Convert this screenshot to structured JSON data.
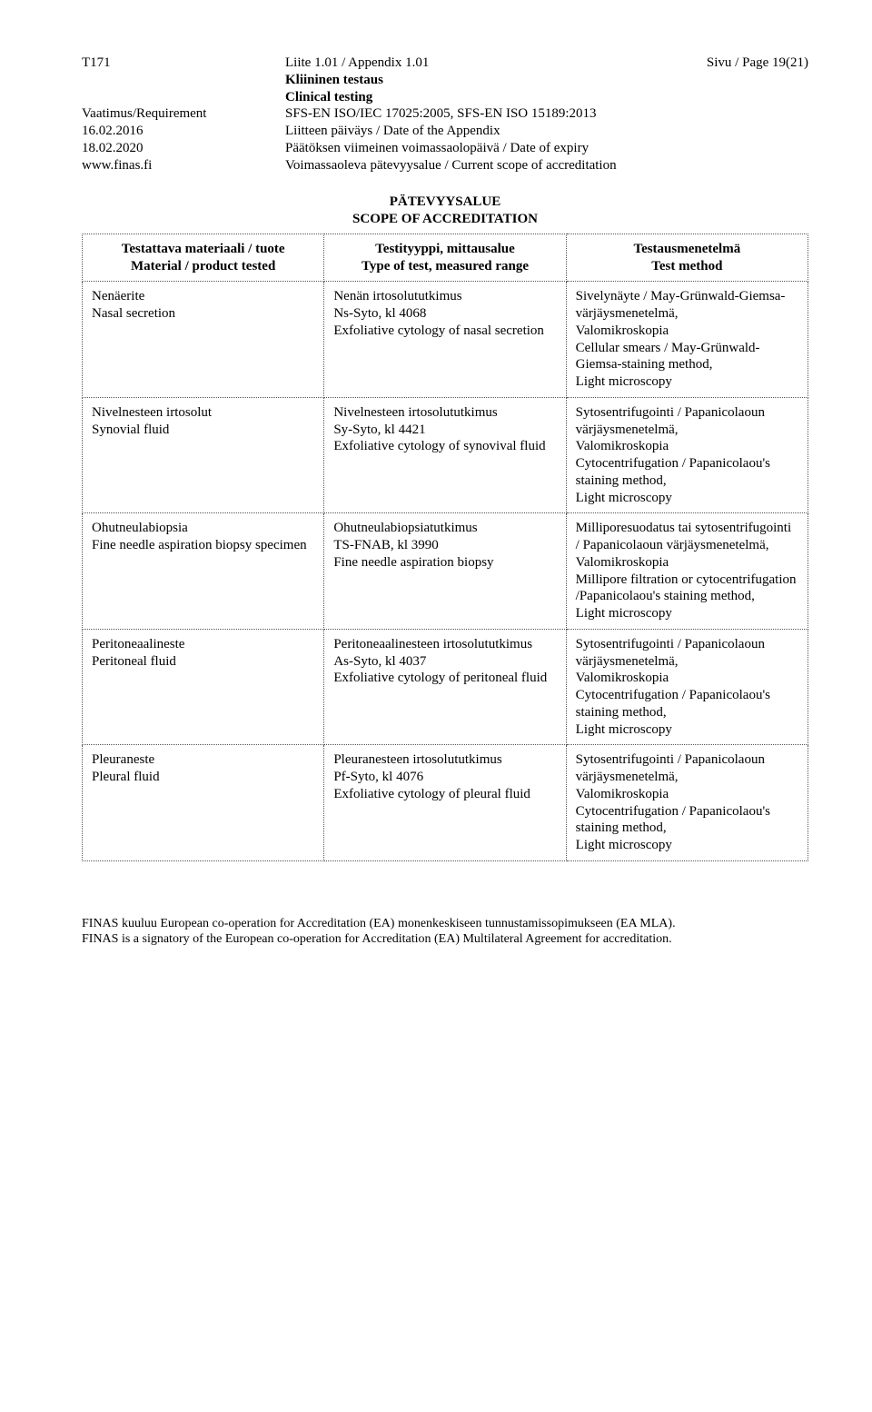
{
  "header": {
    "left_col": [
      "T171",
      "",
      "",
      "Vaatimus/Requirement",
      "16.02.2016",
      "18.02.2020",
      "www.finas.fi"
    ],
    "mid_col": [
      "Liite 1.01 / Appendix 1.01",
      "Kliininen testaus",
      "Clinical testing",
      "SFS-EN ISO/IEC 17025:2005, SFS-EN ISO 15189:2013",
      "Liitteen päiväys / Date of the Appendix",
      "Päätöksen viimeinen voimassaolopäivä / Date of expiry",
      "Voimassaoleva pätevyysalue / Current scope of accreditation"
    ],
    "mid_bold_rows": [
      false,
      true,
      true,
      false,
      false,
      false,
      false
    ],
    "right": "Sivu / Page 19(21)"
  },
  "section": {
    "title": "PÄTEVYYSALUE",
    "subtitle": "SCOPE OF ACCREDITATION"
  },
  "table": {
    "head": {
      "c1a": "Testattava materiaali / tuote",
      "c1b": "Material / product tested",
      "c2a": "Testityyppi, mittausalue",
      "c2b": "Type of test, measured range",
      "c3a": "Testausmenetelmä",
      "c3b": "Test method"
    },
    "rows": [
      {
        "c1": "Nenäerite\nNasal secretion",
        "c2": "Nenän irtosolututkimus\nNs-Syto, kl 4068\nExfoliative cytology of nasal secretion",
        "c3": "Sivelynäyte / May-Grünwald-Giemsa- värjäysmenetelmä,\nValomikroskopia\nCellular smears / May-Grünwald-Giemsa-staining method,\nLight microscopy"
      },
      {
        "c1": "Nivelnesteen irtosolut\nSynovial fluid",
        "c2": "Nivelnesteen irtosolututkimus\nSy-Syto, kl 4421\nExfoliative cytology of synovival fluid",
        "c3": "Sytosentrifugointi / Papanicolaoun värjäysmenetelmä,\nValomikroskopia\nCytocentrifugation / Papanicolaou's staining method,\nLight microscopy"
      },
      {
        "c1": "Ohutneulabiopsia\nFine needle aspiration biopsy specimen",
        "c2": "Ohutneulabiopsiatutkimus\nTS-FNAB, kl 3990\nFine needle aspiration biopsy",
        "c3": "Milliporesuodatus tai sytosentrifugointi / Papanicolaoun värjäysmenetelmä,\nValomikroskopia\nMillipore filtration or cytocentrifugation /Papanicolaou's staining method,\nLight microscopy"
      },
      {
        "c1": "Peritoneaalineste\nPeritoneal fluid",
        "c2": "Peritoneaalinesteen irtosolututkimus\nAs-Syto, kl 4037\nExfoliative cytology of peritoneal fluid",
        "c3": "Sytosentrifugointi / Papanicolaoun värjäysmenetelmä,\nValomikroskopia\nCytocentrifugation / Papanicolaou's staining method,\nLight microscopy"
      },
      {
        "c1": "Pleuraneste\nPleural fluid",
        "c2": "Pleuranesteen irtosolututkimus\nPf-Syto, kl 4076\nExfoliative cytology of pleural fluid",
        "c3": "Sytosentrifugointi / Papanicolaoun värjäysmenetelmä,\nValomikroskopia\nCytocentrifugation / Papanicolaou's staining method,\nLight microscopy"
      }
    ]
  },
  "footer": {
    "line1": "FINAS kuuluu European co-operation for Accreditation (EA) monenkeskiseen tunnustamissopimukseen (EA MLA).",
    "line2": "FINAS is a signatory of the European co-operation for Accreditation (EA) Multilateral Agreement for accreditation."
  }
}
